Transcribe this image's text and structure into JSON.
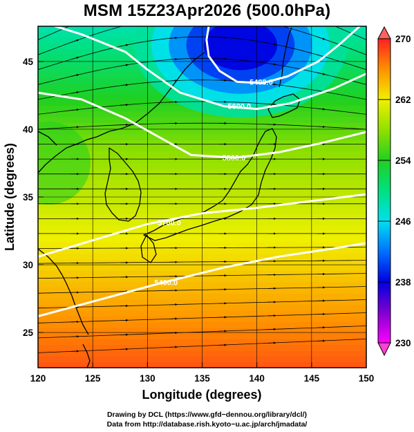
{
  "title": "MSM 15Z23Apr2026 (500.0hPa)",
  "map": {
    "x_axis": {
      "label": "Longitude (degrees)",
      "range": [
        120,
        150
      ],
      "ticks": [
        120,
        125,
        130,
        135,
        140,
        145,
        150
      ]
    },
    "y_axis": {
      "label": "Latitude  (degrees)",
      "range": [
        22.4,
        47.6
      ],
      "ticks": [
        25,
        30,
        35,
        40,
        45
      ]
    },
    "grid": true,
    "shaded_field": "temperature (K)",
    "colorbar": {
      "min": 230,
      "max": 270,
      "ticks": [
        230,
        238,
        246,
        254,
        262,
        270
      ],
      "stops": [
        {
          "value": 230,
          "color": "#ff00ff"
        },
        {
          "value": 234,
          "color": "#8000d0"
        },
        {
          "value": 238,
          "color": "#0000e0"
        },
        {
          "value": 242,
          "color": "#0070ff"
        },
        {
          "value": 246,
          "color": "#00e0f0"
        },
        {
          "value": 250,
          "color": "#00e080"
        },
        {
          "value": 254,
          "color": "#20d020"
        },
        {
          "value": 258,
          "color": "#90e000"
        },
        {
          "value": 262,
          "color": "#f0f000"
        },
        {
          "value": 266,
          "color": "#ff9000"
        },
        {
          "value": 270,
          "color": "#ff2020"
        }
      ],
      "extend": "both"
    },
    "contours": [
      {
        "label": "5400.0",
        "points": [
          [
            120,
            26.2
          ],
          [
            126,
            27.5
          ],
          [
            131,
            28.6
          ],
          [
            137,
            29.8
          ],
          [
            142,
            30.6
          ],
          [
            147,
            31.2
          ],
          [
            150,
            31.6
          ]
        ],
        "label_at": [
          131.7,
          28.7
        ]
      },
      {
        "label": "5700.0",
        "points": [
          [
            120,
            30.6
          ],
          [
            125,
            31.8
          ],
          [
            130,
            33.0
          ],
          [
            135,
            33.8
          ],
          [
            140,
            34.2
          ],
          [
            145,
            34.7
          ],
          [
            150,
            35.2
          ]
        ],
        "label_at": [
          132.0,
          33.1
        ]
      },
      {
        "label": "5800.0",
        "points": [
          [
            120,
            42.7
          ],
          [
            124,
            42.2
          ],
          [
            128,
            40.8
          ],
          [
            132,
            39.0
          ],
          [
            134,
            38.1
          ],
          [
            138,
            37.9
          ],
          [
            142,
            38.3
          ],
          [
            146,
            39.0
          ],
          [
            150,
            39.8
          ]
        ],
        "label_at": [
          137.9,
          37.9
        ]
      },
      {
        "label": "5600.0",
        "points": [
          [
            120,
            48.0
          ],
          [
            124,
            47.0
          ],
          [
            128,
            45.7
          ],
          [
            130,
            44.4
          ],
          [
            133,
            42.7
          ],
          [
            137,
            41.7
          ],
          [
            140,
            41.5
          ],
          [
            143,
            41.9
          ],
          [
            147,
            43.0
          ],
          [
            150,
            44.1
          ]
        ],
        "label_at": [
          138.4,
          41.7
        ]
      },
      {
        "label": "5400.0",
        "points": [
          [
            135.6,
            47.6
          ],
          [
            135.4,
            46.6
          ],
          [
            135.6,
            45.4
          ],
          [
            136.6,
            44.3
          ],
          [
            138.2,
            43.5
          ],
          [
            140.5,
            43.4
          ],
          [
            142.8,
            43.9
          ],
          [
            145.6,
            45.0
          ],
          [
            147.6,
            46.3
          ],
          [
            149.4,
            47.6
          ]
        ],
        "label_at": [
          140.4,
          43.5
        ]
      }
    ]
  },
  "credits": [
    "Drawing by DCL (https://www.gfd−dennou.org/library/dcl/)",
    "Data from http://database.rish.kyoto−u.ac.jp/arch/jmadata/"
  ]
}
